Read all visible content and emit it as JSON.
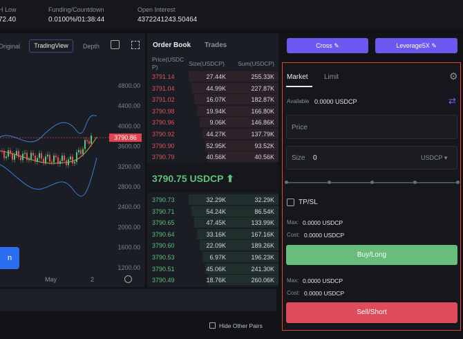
{
  "header": {
    "stats": [
      {
        "label": "H Low",
        "value": "72.40"
      },
      {
        "label": "Funding/Countdown",
        "value": "0.0100%/01:38:44"
      },
      {
        "label": "Open Interest",
        "value": "4372241243.50464"
      }
    ]
  },
  "chart": {
    "tabs": [
      "Original",
      "TradingView",
      "Depth"
    ],
    "price_axis": [
      "4800.00",
      "4400.00",
      "4000.00",
      "3600.00",
      "3200.00",
      "2800.00",
      "2400.00",
      "2000.00",
      "1600.00",
      "1200.00"
    ],
    "last_price": "3790.86",
    "time_axis": [
      "May",
      "2"
    ],
    "button": "n"
  },
  "order_book": {
    "tabs": [
      "Order Book",
      "Trades"
    ],
    "headers": [
      "Price(USDCP)",
      "Size(USDCP)",
      "Sum(USDCP)"
    ],
    "asks": [
      [
        "3791.14",
        "27.44K",
        "255.33K"
      ],
      [
        "3791.04",
        "44.99K",
        "227.87K"
      ],
      [
        "3791.02",
        "16.07K",
        "182.87K"
      ],
      [
        "3790.98",
        "19.94K",
        "166.80K"
      ],
      [
        "3790.96",
        "9.06K",
        "146.86K"
      ],
      [
        "3790.92",
        "44.27K",
        "137.79K"
      ],
      [
        "3790.90",
        "52.95K",
        "93.52K"
      ],
      [
        "3790.79",
        "40.56K",
        "40.56K"
      ]
    ],
    "mid_price": "3790.75 USDCP",
    "bids": [
      [
        "3790.73",
        "32.29K",
        "32.29K"
      ],
      [
        "3790.71",
        "54.24K",
        "86.54K"
      ],
      [
        "3790.65",
        "47.45K",
        "133.99K"
      ],
      [
        "3790.64",
        "33.16K",
        "167.16K"
      ],
      [
        "3790.60",
        "22.09K",
        "189.26K"
      ],
      [
        "3790.53",
        "6.97K",
        "196.23K"
      ],
      [
        "3790.51",
        "45.06K",
        "241.30K"
      ],
      [
        "3790.49",
        "18.76K",
        "260.06K"
      ]
    ]
  },
  "order_form": {
    "margin_mode": "Cross",
    "leverage": "Leverage5X",
    "tabs": [
      "Market",
      "Limit"
    ],
    "available_label": "Available",
    "available_value": "0.0000 USDCP",
    "price_placeholder": "Price",
    "size_label": "Size",
    "size_value": "0",
    "size_unit": "USDCP",
    "tpsl": "TP/SL",
    "buy": {
      "max_label": "Max:",
      "max_value": "0.0000 USDCP",
      "cost_label": "Cost:",
      "cost_value": "0.0000 USDCP",
      "button": "Buy/Long"
    },
    "sell": {
      "max_label": "Max:",
      "max_value": "0.0000 USDCP",
      "cost_label": "Cost:",
      "cost_value": "0.0000 USDCP",
      "button": "Sell/Short"
    }
  },
  "footer": {
    "hide_other_pairs": "Hide Other Pairs"
  }
}
